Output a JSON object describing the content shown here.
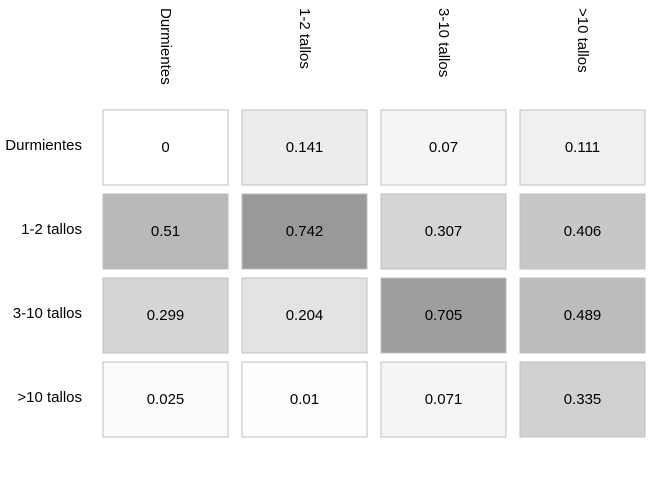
{
  "chart_data": {
    "type": "heatmap",
    "title": "",
    "xlabel": "",
    "ylabel": "",
    "columns": [
      "Durmientes",
      "1-2 tallos",
      "3-10 tallos",
      ">10 tallos"
    ],
    "rows": [
      "Durmientes",
      "1-2 tallos",
      "3-10 tallos",
      ">10 tallos"
    ],
    "values": [
      [
        0,
        0.141,
        0.07,
        0.111
      ],
      [
        0.51,
        0.742,
        0.307,
        0.406
      ],
      [
        0.299,
        0.204,
        0.705,
        0.489
      ],
      [
        0.025,
        0.01,
        0.071,
        0.335
      ]
    ],
    "color_scale": {
      "low": "#ffffff",
      "high": "#999999"
    },
    "cell_border_color": "#bfbfbf",
    "column_label_rotation": "90deg-clockwise",
    "column_label_position": "top",
    "row_label_position": "left"
  }
}
